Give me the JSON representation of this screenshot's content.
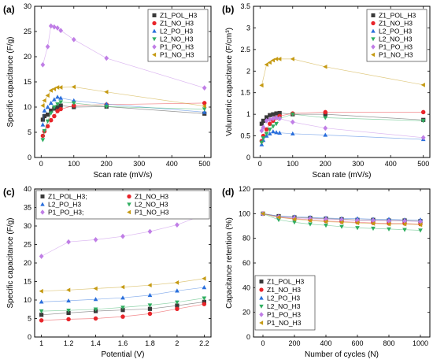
{
  "colors": {
    "Z1_POL_H3": "#3a3a3a",
    "Z1_NO_H3": "#e8242a",
    "L2_PO_H3": "#2a6fdc",
    "L2_NO_H3": "#2fae60",
    "P1_PO_H3": "#c07ee6",
    "P1_NO_H3": "#c59a13"
  },
  "chart_data": [
    {
      "panel": "(a)",
      "type": "line",
      "xlabel": "Scan rate (mV/s)",
      "ylabel": "Specific capacitance (F/g)",
      "xlim": [
        -20,
        520
      ],
      "ylim": [
        0,
        30
      ],
      "xticks": [
        0,
        100,
        200,
        300,
        400,
        500
      ],
      "yticks": [
        0,
        5,
        10,
        15,
        20,
        25,
        30
      ],
      "legend": "top-right",
      "legend_columns": 1,
      "series": [
        {
          "name": "Z1_POL_H3",
          "marker": "square",
          "x": [
            5,
            10,
            20,
            30,
            40,
            50,
            60,
            100,
            200,
            500
          ],
          "y": [
            7.5,
            8.2,
            8.5,
            9.3,
            9.7,
            10.0,
            10.3,
            10.0,
            10.1,
            8.7
          ]
        },
        {
          "name": "Z1_NO_H3",
          "marker": "circle",
          "x": [
            5,
            10,
            20,
            30,
            40,
            50,
            60,
            100,
            200,
            500
          ],
          "y": [
            4.3,
            5.2,
            6.2,
            7.4,
            8.2,
            9.2,
            9.6,
            10.3,
            10.5,
            10.8
          ]
        },
        {
          "name": "L2_PO_H3",
          "marker": "triangle-up",
          "x": [
            5,
            10,
            20,
            30,
            40,
            50,
            60,
            100,
            200,
            500
          ],
          "y": [
            6.5,
            9.3,
            10.0,
            10.8,
            11.5,
            12.0,
            11.8,
            11.3,
            10.6,
            9.0
          ]
        },
        {
          "name": "L2_NO_H3",
          "marker": "triangle-down",
          "x": [
            5,
            10,
            20,
            30,
            40,
            50,
            60,
            100,
            200,
            500
          ],
          "y": [
            3.5,
            5.3,
            7.2,
            8.8,
            10.0,
            10.6,
            11.0,
            10.8,
            10.1,
            9.6
          ]
        },
        {
          "name": "P1_PO_H3",
          "marker": "diamond",
          "x": [
            5,
            20,
            30,
            40,
            50,
            60,
            100,
            200,
            500
          ],
          "y": [
            18.4,
            22.0,
            26.1,
            25.9,
            25.7,
            25.2,
            23.4,
            19.7,
            13.8
          ]
        },
        {
          "name": "P1_NO_H3",
          "marker": "triangle-left",
          "x": [
            5,
            10,
            20,
            30,
            40,
            50,
            60,
            100,
            200,
            500
          ],
          "y": [
            10.3,
            11.3,
            12.3,
            13.3,
            13.6,
            13.9,
            13.9,
            14.0,
            13.0,
            10.2
          ]
        }
      ]
    },
    {
      "panel": "(b)",
      "type": "line",
      "xlabel": "Scan rate (mV/s)",
      "ylabel": "Volumetric capacitance (F/cm³)",
      "xlim": [
        -20,
        520
      ],
      "ylim": [
        0,
        3.5
      ],
      "xticks": [
        0,
        100,
        200,
        300,
        400,
        500
      ],
      "yticks": [
        0.0,
        0.5,
        1.0,
        1.5,
        2.0,
        2.5,
        3.0,
        3.5
      ],
      "legend": "top-right",
      "legend_columns": 1,
      "series": [
        {
          "name": "Z1_POL_H3",
          "marker": "square",
          "x": [
            5,
            10,
            20,
            30,
            40,
            50,
            60,
            100,
            200,
            500
          ],
          "y": [
            0.78,
            0.85,
            0.93,
            0.98,
            1.0,
            1.02,
            1.03,
            1.0,
            1.0,
            0.87
          ]
        },
        {
          "name": "Z1_NO_H3",
          "marker": "circle",
          "x": [
            5,
            10,
            20,
            30,
            40,
            50,
            60,
            100,
            200,
            500
          ],
          "y": [
            0.38,
            0.5,
            0.65,
            0.78,
            0.85,
            0.92,
            0.96,
            1.02,
            1.05,
            1.05
          ]
        },
        {
          "name": "L2_PO_H3",
          "marker": "triangle-up",
          "x": [
            5,
            10,
            20,
            30,
            40,
            50,
            60,
            100,
            200,
            500
          ],
          "y": [
            0.3,
            0.4,
            0.5,
            0.55,
            0.6,
            0.58,
            0.57,
            0.55,
            0.52,
            0.42
          ]
        },
        {
          "name": "L2_NO_H3",
          "marker": "triangle-down",
          "x": [
            5,
            10,
            20,
            30,
            40,
            50,
            60,
            100,
            200,
            500
          ],
          "y": [
            0.35,
            0.45,
            0.55,
            0.65,
            0.72,
            0.78,
            0.9,
            1.0,
            0.92,
            0.85
          ]
        },
        {
          "name": "P1_PO_H3",
          "marker": "diamond",
          "x": [
            5,
            10,
            20,
            30,
            40,
            50,
            60,
            100,
            200,
            500
          ],
          "y": [
            0.62,
            0.7,
            0.85,
            0.88,
            0.9,
            0.92,
            0.9,
            0.82,
            0.68,
            0.46
          ]
        },
        {
          "name": "P1_NO_H3",
          "marker": "triangle-left",
          "x": [
            5,
            20,
            30,
            40,
            50,
            60,
            100,
            200,
            500
          ],
          "y": [
            1.67,
            2.15,
            2.2,
            2.25,
            2.28,
            2.28,
            2.28,
            2.1,
            1.68
          ]
        }
      ]
    },
    {
      "panel": "(c)",
      "type": "line",
      "xlabel": "Potential (V)",
      "ylabel": "Specific capacitance (F/g)",
      "xlim": [
        0.95,
        2.25
      ],
      "ylim": [
        0,
        40
      ],
      "xticks": [
        1.0,
        1.2,
        1.4,
        1.6,
        1.8,
        2.0,
        2.2
      ],
      "yticks": [
        0,
        5,
        10,
        15,
        20,
        25,
        30,
        35,
        40
      ],
      "legend": "top",
      "legend_columns": 2,
      "series": [
        {
          "name": "Z1_POL_H3;",
          "color_key": "Z1_POL_H3",
          "marker": "square",
          "x": [
            1.0,
            1.2,
            1.4,
            1.6,
            1.8,
            2.0,
            2.2
          ],
          "y": [
            6.0,
            6.5,
            7.0,
            7.3,
            7.6,
            8.5,
            9.5
          ]
        },
        {
          "name": "Z1_NO_H3",
          "color_key": "Z1_NO_H3",
          "marker": "circle",
          "x": [
            1.0,
            1.2,
            1.4,
            1.6,
            1.8,
            2.0,
            2.2
          ],
          "y": [
            4.5,
            4.8,
            5.0,
            5.5,
            6.3,
            7.6,
            8.9
          ]
        },
        {
          "name": "L2_PO_H3",
          "color_key": "L2_PO_H3",
          "marker": "triangle-up",
          "x": [
            1.0,
            1.2,
            1.4,
            1.6,
            1.8,
            2.0,
            2.2
          ],
          "y": [
            9.5,
            9.8,
            10.2,
            10.6,
            11.3,
            12.5,
            13.4
          ]
        },
        {
          "name": "L2_NO_H3",
          "color_key": "L2_NO_H3",
          "marker": "triangle-down",
          "x": [
            1.0,
            1.2,
            1.4,
            1.6,
            1.8,
            2.0,
            2.2
          ],
          "y": [
            7.0,
            7.2,
            7.5,
            8.0,
            8.6,
            9.4,
            10.5
          ]
        },
        {
          "name": "P1_PO_H3;",
          "color_key": "P1_PO_H3",
          "marker": "diamond",
          "x": [
            1.0,
            1.2,
            1.4,
            1.6,
            1.8,
            2.0,
            2.2
          ],
          "y": [
            21.8,
            25.7,
            26.3,
            27.2,
            28.5,
            30.3,
            33.1
          ]
        },
        {
          "name": "P1_NO_H3",
          "color_key": "P1_NO_H3",
          "marker": "triangle-left",
          "x": [
            1.0,
            1.2,
            1.4,
            1.6,
            1.8,
            2.0,
            2.2
          ],
          "y": [
            12.4,
            12.7,
            13.1,
            13.5,
            14.0,
            14.7,
            15.8
          ]
        }
      ]
    },
    {
      "panel": "(d)",
      "type": "line",
      "xlabel": "Number of cycles (N)",
      "ylabel": "Capacitance retention (%)",
      "xlim": [
        -60,
        1060
      ],
      "ylim": [
        0,
        120
      ],
      "xticks": [
        0,
        200,
        400,
        600,
        800,
        1000
      ],
      "yticks": [
        0,
        20,
        40,
        60,
        80,
        100,
        120
      ],
      "legend": "bottom-left",
      "legend_columns": 1,
      "series": [
        {
          "name": "Z1_POL_H3",
          "marker": "square",
          "x": [
            0,
            100,
            200,
            300,
            400,
            500,
            600,
            700,
            800,
            900,
            1000
          ],
          "y": [
            100,
            98,
            97,
            96.5,
            96,
            95.5,
            95,
            95,
            94.5,
            94.5,
            94
          ]
        },
        {
          "name": "Z1_NO_H3",
          "marker": "circle",
          "x": [
            0,
            100,
            200,
            300,
            400,
            500,
            600,
            700,
            800,
            900,
            1000
          ],
          "y": [
            100,
            97,
            96,
            95,
            94,
            93.5,
            93,
            92.5,
            92,
            92,
            91.5
          ]
        },
        {
          "name": "L2_PO_H3",
          "marker": "triangle-up",
          "x": [
            0,
            100,
            200,
            300,
            400,
            500,
            600,
            700,
            800,
            900,
            1000
          ],
          "y": [
            100,
            98,
            97.5,
            97,
            96.5,
            96,
            96,
            95.5,
            95.5,
            95,
            95
          ]
        },
        {
          "name": "L2_NO_H3",
          "marker": "triangle-down",
          "x": [
            0,
            100,
            200,
            300,
            400,
            500,
            600,
            700,
            800,
            900,
            1000
          ],
          "y": [
            100,
            95,
            93,
            91.5,
            90.5,
            89.5,
            88.5,
            88,
            87.5,
            87,
            86.5
          ]
        },
        {
          "name": "P1_PO_H3",
          "marker": "diamond",
          "x": [
            0,
            100,
            200,
            300,
            400,
            500,
            600,
            700,
            800,
            900,
            1000
          ],
          "y": [
            100,
            97.5,
            96.5,
            96,
            95.5,
            95,
            94.5,
            94.5,
            94,
            94,
            93.5
          ]
        },
        {
          "name": "P1_NO_H3",
          "marker": "triangle-left",
          "x": [
            0,
            100,
            200,
            300,
            400,
            500,
            600,
            700,
            800,
            900,
            1000
          ],
          "y": [
            100,
            97,
            95.5,
            94.5,
            93.5,
            93,
            92.5,
            92,
            91.5,
            91.5,
            91
          ]
        }
      ]
    }
  ]
}
